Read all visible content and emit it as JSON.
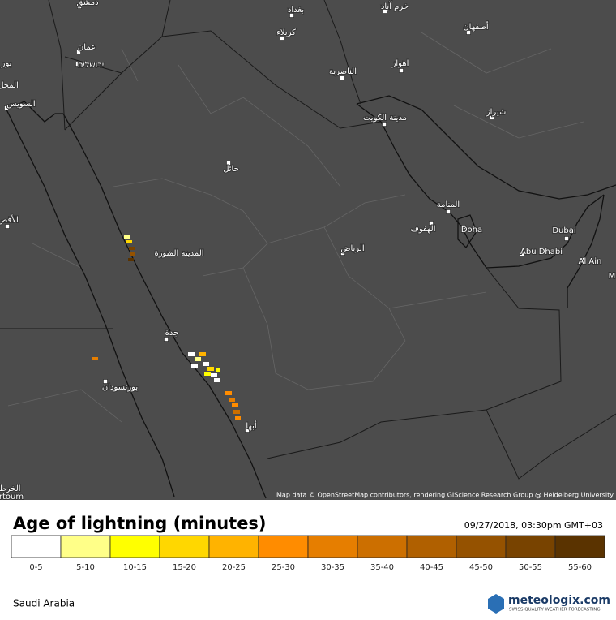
{
  "map": {
    "labels": [
      "دمشق",
      "بغداد",
      "خرم آباد",
      "كربلاء",
      "أصفهان",
      "عمان",
      "ירושלים",
      "بور",
      "المحل",
      "اهواز",
      "الناصرية",
      "السويس",
      "مدينة الكويت",
      "شيراز",
      "حائل",
      "المنامة",
      "الأقص",
      "الهفوف",
      "Doha",
      "Dubai",
      "الرياض",
      "المدينة المنورة",
      "Abu Dhabi",
      "Al Ain",
      "M",
      "جدة",
      "بورتسودان",
      "أبها",
      "الخرط",
      "rtoum"
    ],
    "attribution": "Map data © OpenStreetMap contributors, rendering GIScience Research Group @ Heidelberg University"
  },
  "legend": {
    "title": "Age of lightning (minutes)",
    "timestamp": "09/27/2018, 03:30pm GMT+03",
    "items": [
      {
        "label": "0-5",
        "color": "#ffffff"
      },
      {
        "label": "5-10",
        "color": "#ffff88"
      },
      {
        "label": "10-15",
        "color": "#ffff00"
      },
      {
        "label": "15-20",
        "color": "#ffd700"
      },
      {
        "label": "20-25",
        "color": "#ffb300"
      },
      {
        "label": "25-30",
        "color": "#ff8c00"
      },
      {
        "label": "30-35",
        "color": "#e67e00"
      },
      {
        "label": "35-40",
        "color": "#cc6f00"
      },
      {
        "label": "40-45",
        "color": "#b06000"
      },
      {
        "label": "45-50",
        "color": "#955200"
      },
      {
        "label": "50-55",
        "color": "#784300"
      },
      {
        "label": "55-60",
        "color": "#5a3300"
      }
    ]
  },
  "footer": {
    "region": "Saudi Arabia",
    "brand": "meteologix.com",
    "tagline": "SWISS QUALITY WEATHER FORECASTING"
  }
}
